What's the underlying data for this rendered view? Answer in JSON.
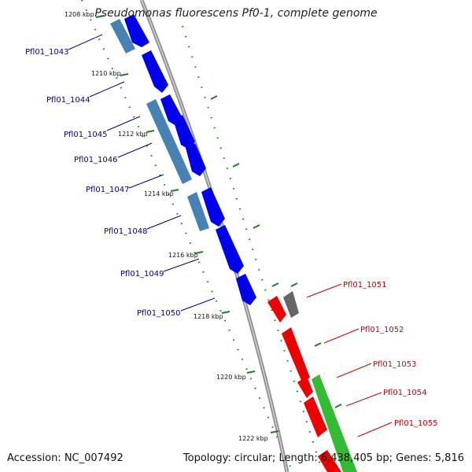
{
  "title": "Pseudomonas fluorescens Pf0-1, complete genome",
  "accession": "Accession: NC_007492",
  "summary": "Topology: circular; Length: 6,438,405 bp; Genes: 5,816",
  "colors": {
    "backbone": "#8a8a8a",
    "tick": "#1f7f1f",
    "cds_forward": "#0000ee",
    "cds_forward_alt": "#4682b4",
    "cds_reverse": "#ee0000",
    "other_feature": "#666666",
    "green_feature": "#33bb33",
    "label_left": "#00008b",
    "label_right": "#cc0000"
  },
  "scale_labels": [
    "1208 kbp",
    "1210 kbp",
    "1212 kbp",
    "1214 kbp",
    "1216 kbp",
    "1218 kbp",
    "1220 kbp",
    "1222 kbp"
  ],
  "genes_left": [
    "Pfl01_1043",
    "Pfl01_1044",
    "Pfl01_1045",
    "Pfl01_1046",
    "Pfl01_1047",
    "Pfl01_1048",
    "Pfl01_1049",
    "Pfl01_1050"
  ],
  "genes_right": [
    "Pfl01_1051",
    "Pfl01_1052",
    "Pfl01_1053",
    "Pfl01_1054",
    "Pfl01_1055"
  ]
}
